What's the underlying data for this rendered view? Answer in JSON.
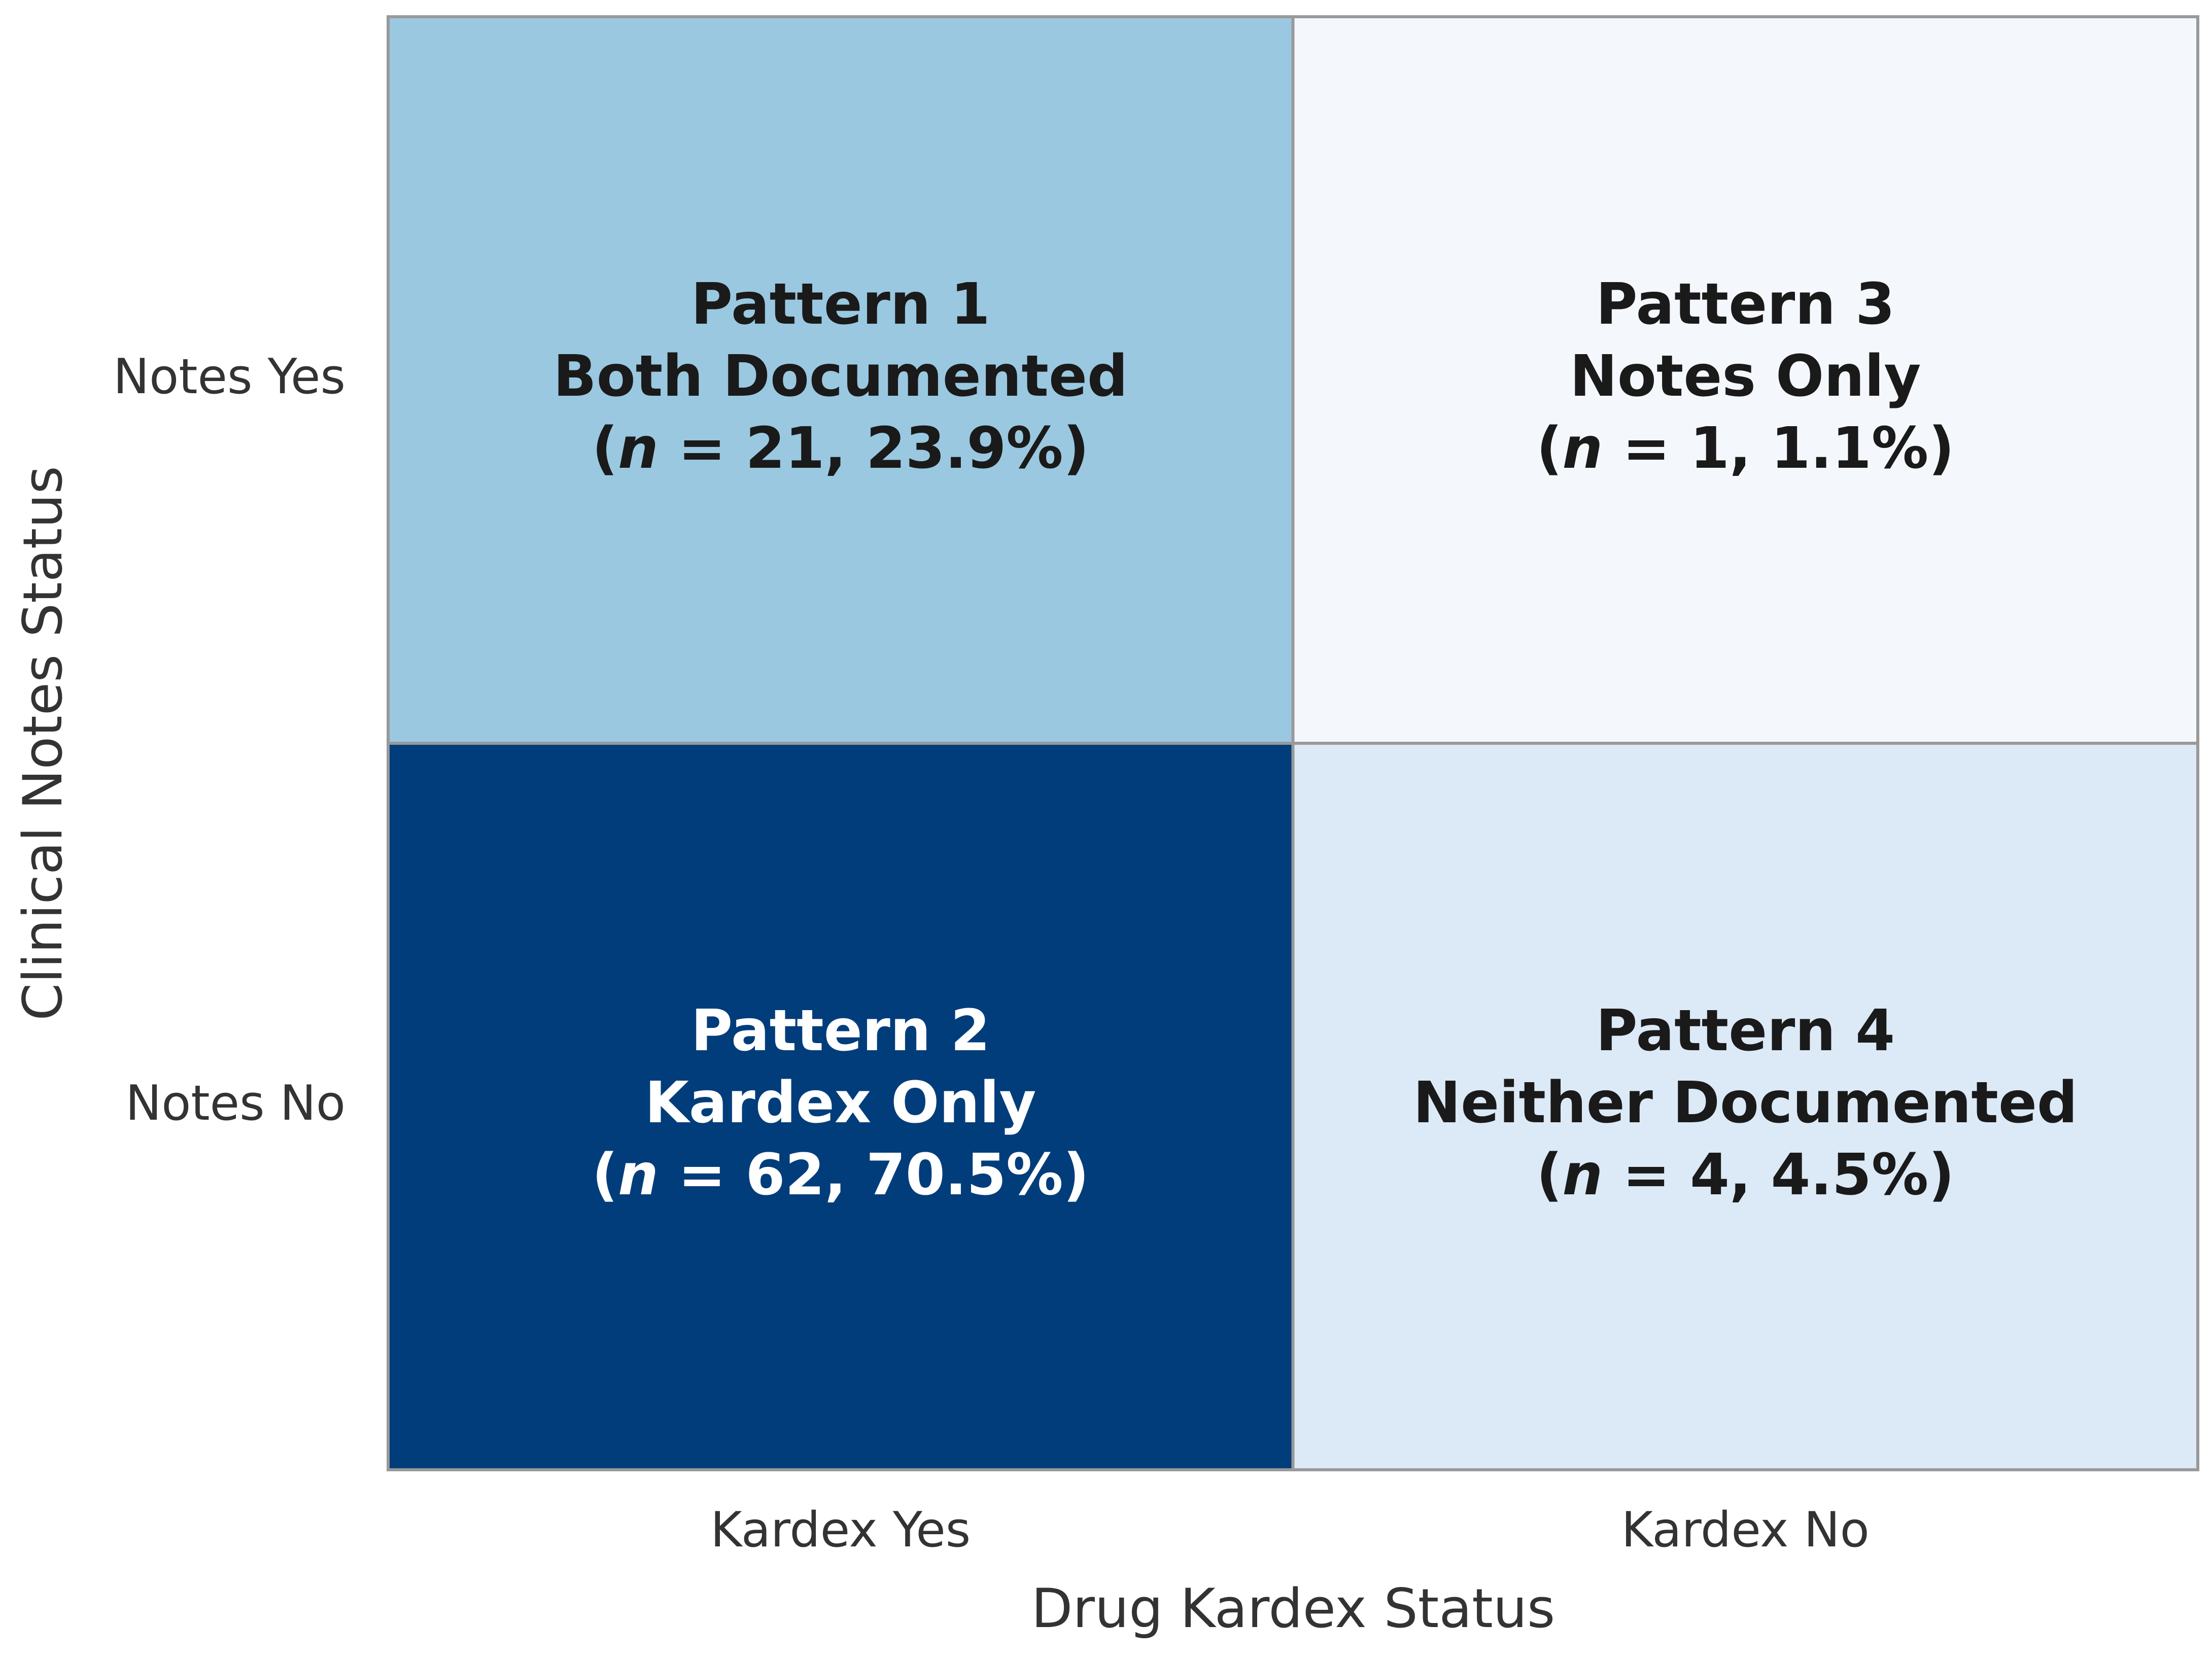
{
  "chart_data": {
    "type": "heatmap",
    "xlabel": "Drug Kardex Status",
    "ylabel": "Clinical Notes Status",
    "x_categories": [
      "Kardex Yes",
      "Kardex No"
    ],
    "y_categories": [
      "Notes Yes",
      "Notes No"
    ],
    "values": [
      [
        21,
        1
      ],
      [
        62,
        4
      ]
    ],
    "value_labels": [
      [
        "(n = 21, 23.9%)",
        "(n = 1, 1.1%)"
      ],
      [
        "(n = 62, 70.5%)",
        "(n = 4, 4.5%)"
      ]
    ],
    "cell_titles": [
      [
        "Pattern 1",
        "Pattern 3"
      ],
      [
        "Pattern 2",
        "Pattern 4"
      ]
    ],
    "cell_subtitles": [
      [
        "Both Documented",
        "Notes Only"
      ],
      [
        "Kardex Only",
        "Neither Documented"
      ]
    ],
    "cell_colors": [
      [
        "#9ac8e0",
        "#f4f8fd"
      ],
      [
        "#023d7b",
        "#dce9f6"
      ]
    ]
  }
}
